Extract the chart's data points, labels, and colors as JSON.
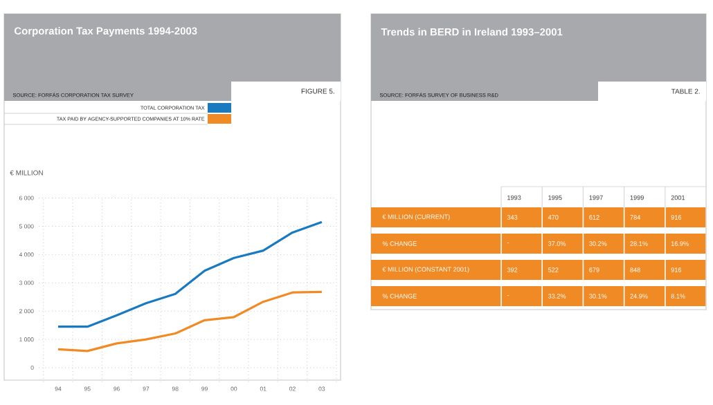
{
  "chart_data": [
    {
      "type": "line",
      "title": "Corporation Tax Payments 1994-2003",
      "annotations": [
        "SOURCE: FORFÁS CORPORATION TAX SURVEY",
        "FIGURE 5."
      ],
      "ylabel": "€ MILLION",
      "categories": [
        "94",
        "95",
        "96",
        "97",
        "98",
        "99",
        "00",
        "01",
        "02",
        "03"
      ],
      "series": [
        {
          "name": "TOTAL CORPORATION TAX",
          "color": "#1a7abf",
          "values": [
            1450,
            1450,
            1850,
            2280,
            2610,
            3430,
            3880,
            4140,
            4780,
            5150
          ]
        },
        {
          "name": "TAX PAID BY AGENCY-SUPPORTED COMPANIES AT 10% RATE",
          "color": "#f08a24",
          "values": [
            650,
            590,
            860,
            1000,
            1210,
            1680,
            1790,
            2330,
            2660,
            2680
          ]
        }
      ],
      "ylim": [
        -500,
        6000
      ],
      "yticks": [
        {
          "value": 0,
          "label": "0"
        },
        {
          "value": 1000,
          "label": "1 000"
        },
        {
          "value": 2000,
          "label": "2 000"
        },
        {
          "value": 3000,
          "label": "3 000"
        },
        {
          "value": 4000,
          "label": "4 000"
        },
        {
          "value": 5000,
          "label": "5 000"
        },
        {
          "value": 6000,
          "label": "6 000"
        }
      ],
      "grid": true,
      "legend": "top",
      "line_style": "solid",
      "marker": "none"
    },
    {
      "type": "heatmap",
      "title": "Trends in BERD in Ireland 1993–2001",
      "annotations": [
        "SOURCE: FORFÁS SURVEY OF BUSINESS R&D",
        "TABLE 2."
      ],
      "color": "#f08a24",
      "categories": [
        "1993",
        "1995",
        "1997",
        "1999",
        "2001"
      ],
      "y_categories": [
        "€ MILLION (CURRENT)",
        "% CHANGE",
        "€ MILLION (CONSTANT 2001)",
        "% CHANGE"
      ],
      "cells": [
        [
          null,
          null,
          null,
          null,
          null
        ],
        [
          null,
          null,
          null,
          null,
          null
        ],
        [
          null,
          null,
          null,
          null,
          null
        ],
        [
          null,
          null,
          null,
          null,
          null
        ]
      ],
      "cell_labels": [
        [
          "343",
          "470",
          "612",
          "784",
          "916"
        ],
        [
          "-",
          "37.0%",
          "30.2%",
          "28.1%",
          "16.9%"
        ],
        [
          "392",
          "522",
          "679",
          "848",
          "916"
        ],
        [
          "-",
          "33.2%",
          "30.1%",
          "24.9%",
          "8.1%"
        ]
      ]
    }
  ]
}
